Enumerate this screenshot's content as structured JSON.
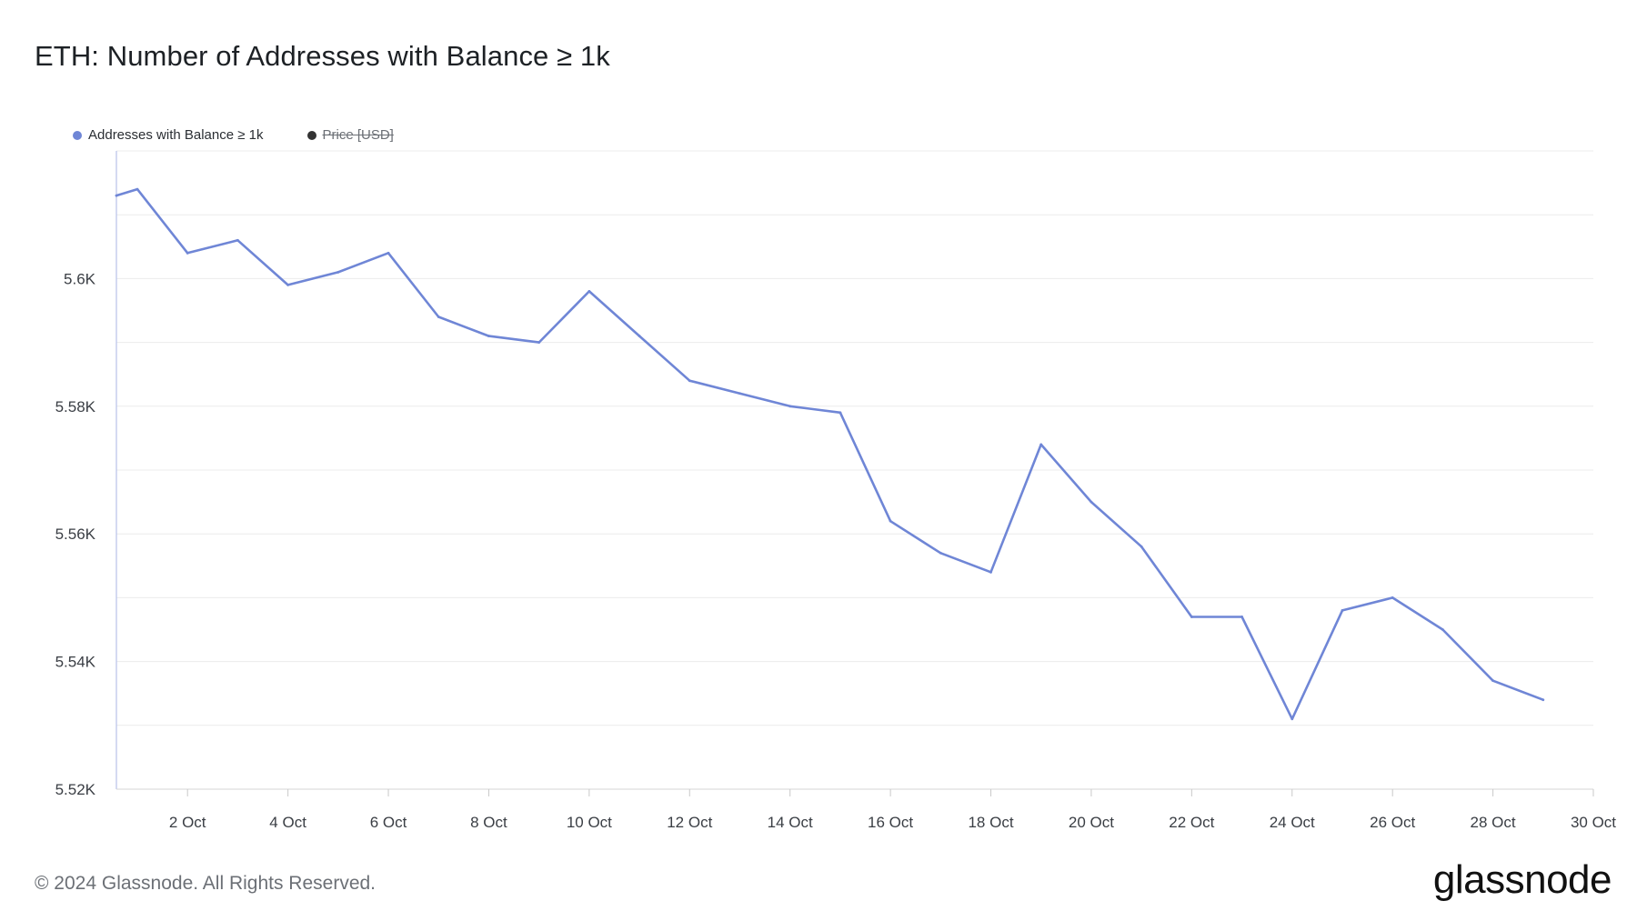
{
  "title": "ETH: Number of Addresses with Balance ≥ 1k",
  "legend": {
    "items": [
      {
        "label": "Addresses with Balance ≥ 1k",
        "color": "#6f86d6",
        "active": true
      },
      {
        "label": "Price [USD]",
        "color": "#333333",
        "active": false
      }
    ]
  },
  "footer": {
    "copyright": "© 2024 Glassnode. All Rights Reserved.",
    "brand": "glassnode"
  },
  "chart_data": {
    "type": "line",
    "title": "ETH: Number of Addresses with Balance ≥ 1k",
    "xlabel": "",
    "ylabel": "",
    "grid": true,
    "legend_position": "top-left",
    "ylim": [
      5520,
      5620
    ],
    "xlim": [
      "2024-09-30T14:00",
      "2024-10-30T00:00"
    ],
    "y_ticks": [
      {
        "value": 5520,
        "label": "5.52K"
      },
      {
        "value": 5540,
        "label": "5.54K"
      },
      {
        "value": 5560,
        "label": "5.56K"
      },
      {
        "value": 5580,
        "label": "5.58K"
      },
      {
        "value": 5600,
        "label": "5.6K"
      }
    ],
    "x_ticks": [
      {
        "date": "2024-10-02",
        "label": "2 Oct"
      },
      {
        "date": "2024-10-04",
        "label": "4 Oct"
      },
      {
        "date": "2024-10-06",
        "label": "6 Oct"
      },
      {
        "date": "2024-10-08",
        "label": "8 Oct"
      },
      {
        "date": "2024-10-10",
        "label": "10 Oct"
      },
      {
        "date": "2024-10-12",
        "label": "12 Oct"
      },
      {
        "date": "2024-10-14",
        "label": "14 Oct"
      },
      {
        "date": "2024-10-16",
        "label": "16 Oct"
      },
      {
        "date": "2024-10-18",
        "label": "18 Oct"
      },
      {
        "date": "2024-10-20",
        "label": "20 Oct"
      },
      {
        "date": "2024-10-22",
        "label": "22 Oct"
      },
      {
        "date": "2024-10-24",
        "label": "24 Oct"
      },
      {
        "date": "2024-10-26",
        "label": "26 Oct"
      },
      {
        "date": "2024-10-28",
        "label": "28 Oct"
      },
      {
        "date": "2024-10-30",
        "label": "30 Oct"
      }
    ],
    "series": [
      {
        "name": "Addresses with Balance ≥ 1k",
        "color": "#6f86d6",
        "points": [
          {
            "x": "2024-09-30T14:00",
            "y": 5613
          },
          {
            "x": "2024-10-01T00:00",
            "y": 5614
          },
          {
            "x": "2024-10-02T00:00",
            "y": 5604
          },
          {
            "x": "2024-10-03T00:00",
            "y": 5606
          },
          {
            "x": "2024-10-04T00:00",
            "y": 5599
          },
          {
            "x": "2024-10-05T00:00",
            "y": 5601
          },
          {
            "x": "2024-10-06T00:00",
            "y": 5604
          },
          {
            "x": "2024-10-07T00:00",
            "y": 5594
          },
          {
            "x": "2024-10-08T00:00",
            "y": 5591
          },
          {
            "x": "2024-10-09T00:00",
            "y": 5590
          },
          {
            "x": "2024-10-10T00:00",
            "y": 5598
          },
          {
            "x": "2024-10-11T00:00",
            "y": 5591
          },
          {
            "x": "2024-10-12T00:00",
            "y": 5584
          },
          {
            "x": "2024-10-13T00:00",
            "y": 5582
          },
          {
            "x": "2024-10-14T00:00",
            "y": 5580
          },
          {
            "x": "2024-10-15T00:00",
            "y": 5579
          },
          {
            "x": "2024-10-16T00:00",
            "y": 5562
          },
          {
            "x": "2024-10-17T00:00",
            "y": 5557
          },
          {
            "x": "2024-10-18T00:00",
            "y": 5554
          },
          {
            "x": "2024-10-19T00:00",
            "y": 5574
          },
          {
            "x": "2024-10-20T00:00",
            "y": 5565
          },
          {
            "x": "2024-10-21T00:00",
            "y": 5558
          },
          {
            "x": "2024-10-22T00:00",
            "y": 5547
          },
          {
            "x": "2024-10-23T00:00",
            "y": 5547
          },
          {
            "x": "2024-10-24T00:00",
            "y": 5531
          },
          {
            "x": "2024-10-25T00:00",
            "y": 5548
          },
          {
            "x": "2024-10-26T00:00",
            "y": 5550
          },
          {
            "x": "2024-10-27T00:00",
            "y": 5545
          },
          {
            "x": "2024-10-28T00:00",
            "y": 5537
          },
          {
            "x": "2024-10-29T00:00",
            "y": 5534
          }
        ]
      }
    ]
  }
}
